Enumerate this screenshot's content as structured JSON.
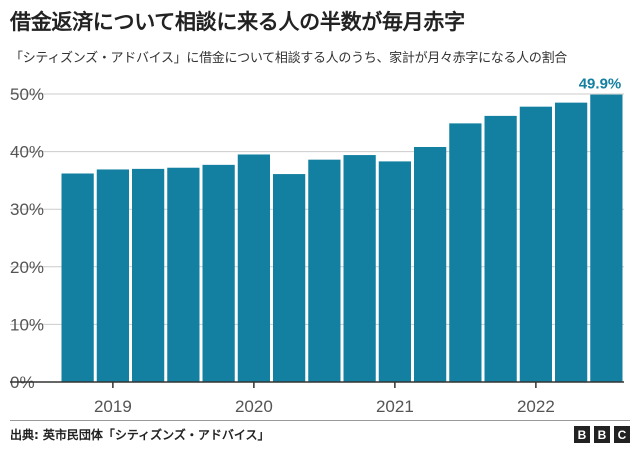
{
  "title": "借金返済について相談に来る人の半数が毎月赤字",
  "subtitle": "「シティズンズ・アドバイス」に借金について相談する人のうち、家計が月々赤字になる人の割合",
  "source_label": "出典:",
  "source_text": "英市民団体「シティズンズ・アドバイス」",
  "logo": [
    "B",
    "B",
    "C"
  ],
  "colors": {
    "bar": "#1380a1",
    "highlight_label": "#1380a1",
    "grid": "#cccccc",
    "axis_text": "#555555"
  },
  "chart_data": {
    "type": "bar",
    "title": "借金返済について相談に来る人の半数が毎月赤字",
    "xlabel": "",
    "ylabel": "",
    "ylim": [
      0,
      50
    ],
    "yticks": [
      0,
      10,
      20,
      30,
      40,
      50
    ],
    "ytick_labels": [
      "0%",
      "10%",
      "20%",
      "30%",
      "40%",
      "50%"
    ],
    "values": [
      36.2,
      36.9,
      37.0,
      37.2,
      37.7,
      39.5,
      36.1,
      38.6,
      39.4,
      38.3,
      40.8,
      44.9,
      46.2,
      47.8,
      48.5,
      49.9
    ],
    "xtick_labels": [
      {
        "label": "2019",
        "at_bar": 1
      },
      {
        "label": "2020",
        "at_bar": 5
      },
      {
        "label": "2021",
        "at_bar": 9
      },
      {
        "label": "2022",
        "at_bar": 13
      }
    ],
    "annotation": {
      "text": "49.9%",
      "bar_index": 15
    },
    "grid": true
  }
}
